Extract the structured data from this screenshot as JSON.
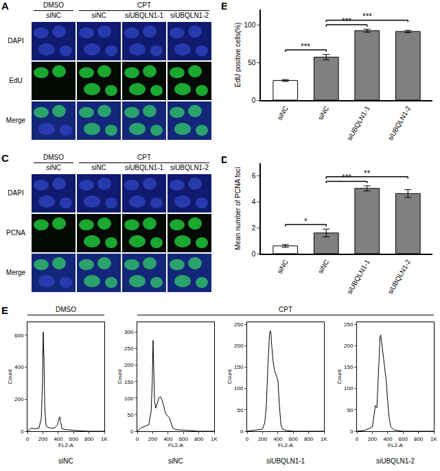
{
  "figure": {
    "image_panels": [
      {
        "panel_label": "A",
        "groups": [
          {
            "label": "DMSO",
            "span": 1
          },
          {
            "label": "CPT",
            "span": 3
          }
        ],
        "columns": [
          "siNC",
          "siNC",
          "siUBQLN1-1",
          "siUBQLN1-2"
        ],
        "rows": [
          "DAPI",
          "EdU",
          "Merge"
        ]
      },
      {
        "panel_label": "C",
        "groups": [
          {
            "label": "DMSO",
            "span": 1
          },
          {
            "label": "CPT",
            "span": 3
          }
        ],
        "columns": [
          "siNC",
          "siNC",
          "siUBQLN1-1",
          "siUBQLN1-2"
        ],
        "rows": [
          "DAPI",
          "PCNA",
          "Merge"
        ]
      }
    ],
    "histogram_panel": {
      "panel_label": "E",
      "groups": [
        {
          "label": "DMSO",
          "span": 1
        },
        {
          "label": "CPT",
          "span": 3
        }
      ]
    }
  },
  "chart_data": [
    {
      "panel_label": "B",
      "type": "bar",
      "categories": [
        "siNC",
        "siNC",
        "siUBQLN1-1",
        "siUBQLN1-2"
      ],
      "values": [
        26,
        57,
        92,
        91
      ],
      "errors": [
        1.2,
        3.5,
        2,
        1.5
      ],
      "colors": [
        "#ffffff",
        "#808080",
        "#808080",
        "#808080"
      ],
      "y_label": "EdU positive cells(%)",
      "ylim": [
        0,
        120
      ],
      "yticks": [
        0,
        50,
        100
      ],
      "comparisons": [
        {
          "pair": [
            0,
            1
          ],
          "label": "***"
        },
        {
          "pair": [
            1,
            2
          ],
          "label": "***"
        },
        {
          "pair": [
            1,
            3
          ],
          "label": "***"
        }
      ]
    },
    {
      "panel_label": "D",
      "type": "bar",
      "categories": [
        "siNC",
        "siNC",
        "siUBQLN1-1",
        "siUBQLN1-2"
      ],
      "values": [
        0.6,
        1.6,
        5.05,
        4.65
      ],
      "errors": [
        0.1,
        0.3,
        0.2,
        0.3
      ],
      "colors": [
        "#ffffff",
        "#808080",
        "#808080",
        "#808080"
      ],
      "y_label": "Mean number of PCNA foci",
      "ylim": [
        0,
        7
      ],
      "yticks": [
        0,
        2,
        4,
        6
      ],
      "comparisons": [
        {
          "pair": [
            0,
            1
          ],
          "label": "*"
        },
        {
          "pair": [
            1,
            2
          ],
          "label": "***"
        },
        {
          "pair": [
            1,
            3
          ],
          "label": "**"
        }
      ]
    },
    {
      "type": "line",
      "color": "#000000",
      "x_label": "FL2-A",
      "y_label": "Count",
      "caption": "siNC",
      "x": [
        0,
        50,
        100,
        150,
        180,
        195,
        205,
        215,
        225,
        240,
        260,
        300,
        350,
        390,
        410,
        420,
        430,
        450,
        500,
        600,
        700,
        800,
        1000
      ],
      "values": [
        0,
        20,
        15,
        20,
        80,
        300,
        620,
        450,
        150,
        40,
        25,
        20,
        20,
        40,
        80,
        90,
        60,
        15,
        10,
        5,
        2,
        0,
        0
      ],
      "xlim": [
        0,
        1000
      ],
      "xticks": [
        0,
        200,
        400,
        600,
        800,
        {
          "value": 1000,
          "label": "1K"
        }
      ],
      "ylim": [
        0,
        680
      ],
      "yticks": [
        0,
        200,
        400,
        600
      ]
    },
    {
      "type": "line",
      "color": "#000000",
      "x_label": "FL2-A",
      "y_label": "Count",
      "caption": "siNC",
      "x": [
        0,
        50,
        100,
        150,
        180,
        195,
        205,
        215,
        225,
        240,
        260,
        280,
        300,
        320,
        340,
        360,
        380,
        400,
        420,
        440,
        460,
        500,
        600,
        800,
        1000
      ],
      "values": [
        0,
        10,
        15,
        20,
        60,
        150,
        275,
        200,
        90,
        70,
        85,
        100,
        105,
        95,
        80,
        60,
        50,
        45,
        40,
        25,
        10,
        5,
        3,
        0,
        0
      ],
      "xlim": [
        0,
        1000
      ],
      "xticks": [
        0,
        200,
        400,
        600,
        800,
        {
          "value": 1000,
          "label": "1K"
        }
      ],
      "ylim": [
        0,
        330
      ],
      "yticks": [
        0,
        50,
        100,
        150,
        200,
        250,
        300
      ]
    },
    {
      "type": "line",
      "color": "#000000",
      "x_label": "FL2-A",
      "y_label": "Count",
      "caption": "siUBQLN1-1",
      "x": [
        0,
        100,
        200,
        230,
        250,
        270,
        290,
        300,
        310,
        320,
        340,
        360,
        380,
        400,
        420,
        440,
        460,
        500,
        600,
        1000
      ],
      "values": [
        0,
        2,
        5,
        20,
        60,
        150,
        225,
        235,
        230,
        200,
        160,
        140,
        130,
        120,
        60,
        15,
        5,
        2,
        0,
        0
      ],
      "xlim": [
        0,
        1000
      ],
      "xticks": [
        0,
        200,
        400,
        600,
        800,
        {
          "value": 1000,
          "label": "1K"
        }
      ],
      "ylim": [
        0,
        255
      ],
      "yticks": [
        0,
        50,
        100,
        150,
        200,
        250
      ]
    },
    {
      "type": "line",
      "color": "#000000",
      "x_label": "FL2-A",
      "y_label": "Count",
      "caption": "siUBQLN1-2",
      "x": [
        0,
        100,
        200,
        220,
        240,
        260,
        280,
        300,
        310,
        320,
        340,
        360,
        380,
        400,
        420,
        440,
        480,
        600,
        1000
      ],
      "values": [
        0,
        2,
        10,
        40,
        60,
        55,
        150,
        220,
        225,
        210,
        170,
        150,
        120,
        70,
        30,
        10,
        3,
        0,
        0
      ],
      "xlim": [
        0,
        1000
      ],
      "xticks": [
        0,
        200,
        400,
        600,
        800,
        {
          "value": 1000,
          "label": "1K"
        }
      ],
      "ylim": [
        0,
        255
      ],
      "yticks": [
        0,
        50,
        100,
        150,
        200,
        250
      ]
    }
  ]
}
